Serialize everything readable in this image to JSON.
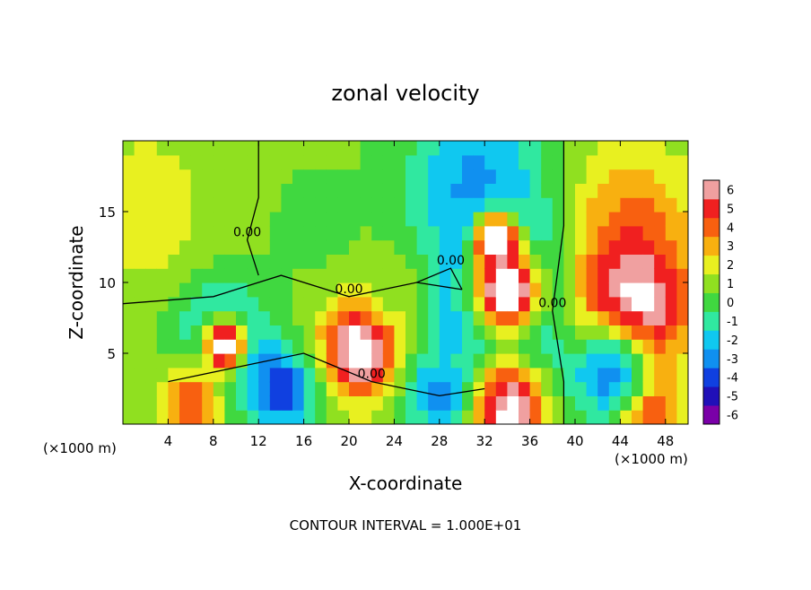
{
  "chart_data": {
    "type": "heatmap",
    "title": "zonal velocity",
    "xlabel": "X-coordinate",
    "ylabel": "Z-coordinate",
    "x_unit_left": "(×1000 m)",
    "x_unit_right": "(×1000 m)",
    "footer": "CONTOUR INTERVAL = 1.000E+01",
    "xlim": [
      0,
      50
    ],
    "ylim": [
      0,
      20
    ],
    "x_ticks": [
      4,
      8,
      12,
      16,
      20,
      24,
      28,
      32,
      36,
      40,
      44,
      48
    ],
    "x_tick_labels": [
      "4",
      "8",
      "12",
      "16",
      "20",
      "24",
      "28",
      "32",
      "36",
      "40",
      "44",
      "48"
    ],
    "y_ticks": [
      5,
      10,
      15
    ],
    "y_tick_labels": [
      "5",
      "10",
      "15"
    ],
    "colorbar": {
      "levels": [
        -6,
        -5,
        -4,
        -3,
        -2,
        -1,
        0,
        1,
        2,
        3,
        4,
        5,
        6
      ],
      "labels": [
        "-6",
        "-5",
        "-4",
        "-3",
        "-2",
        "-1",
        "0",
        "1",
        "2",
        "3",
        "4",
        "5",
        "6"
      ],
      "colors": [
        "#7a00a8",
        "#2010b8",
        "#1040e0",
        "#1090f0",
        "#10c8f0",
        "#30e8a0",
        "#40d840",
        "#90e020",
        "#e8f020",
        "#f8b010",
        "#f86010",
        "#f02020",
        "#f0a0a0"
      ]
    },
    "background_value": 0.7,
    "features": [
      {
        "x": 2,
        "y": 15,
        "r": 6,
        "value": 2.2
      },
      {
        "x": 31,
        "y": 18,
        "r": 6,
        "value": -2.3
      },
      {
        "x": 34,
        "y": 9,
        "r": 7,
        "value": -5.5
      },
      {
        "x": 34,
        "y": 9.5,
        "r": 3.5,
        "value": 8
      },
      {
        "x": 33,
        "y": 13,
        "r": 2,
        "value": 8
      },
      {
        "x": 45,
        "y": 14,
        "r": 6,
        "value": 3.5
      },
      {
        "x": 45,
        "y": 8,
        "r": 5,
        "value": 8
      },
      {
        "x": 9,
        "y": 5.5,
        "r": 4,
        "value": -5
      },
      {
        "x": 9,
        "y": 5.5,
        "r": 2.2,
        "value": 8
      },
      {
        "x": 21,
        "y": 5.5,
        "r": 4,
        "value": 6
      },
      {
        "x": 21,
        "y": 5.5,
        "r": 2,
        "value": 8
      },
      {
        "x": 14,
        "y": 2.5,
        "r": 3,
        "value": -4.5
      },
      {
        "x": 6,
        "y": 1.5,
        "r": 3,
        "value": 4.5
      },
      {
        "x": 34,
        "y": 1,
        "r": 4,
        "value": 7
      },
      {
        "x": 46,
        "y": 1,
        "r": 3,
        "value": 7
      },
      {
        "x": 28,
        "y": 2,
        "r": 3,
        "value": -3
      },
      {
        "x": 43,
        "y": 3.5,
        "r": 4,
        "value": -3
      },
      {
        "x": 17,
        "y": 14,
        "r": 5,
        "value": 0.3
      },
      {
        "x": 24,
        "y": 10,
        "r": 3,
        "value": 1.0
      }
    ],
    "contours": [
      {
        "label": "0.00",
        "points": [
          [
            0,
            8.5
          ],
          [
            8,
            9
          ],
          [
            14,
            10.5
          ],
          [
            20,
            9
          ],
          [
            26,
            10
          ],
          [
            30,
            9.5
          ]
        ]
      },
      {
        "label": "0.00",
        "points": [
          [
            4,
            3
          ],
          [
            10,
            4
          ],
          [
            16,
            5
          ],
          [
            22,
            3
          ],
          [
            28,
            2
          ],
          [
            32,
            2.5
          ]
        ]
      },
      {
        "label": "0.00",
        "points": [
          [
            12,
            20
          ],
          [
            12,
            16
          ],
          [
            11,
            13
          ],
          [
            12,
            10.5
          ]
        ]
      },
      {
        "label": "0.00",
        "points": [
          [
            39,
            20
          ],
          [
            39,
            14
          ],
          [
            38,
            8
          ],
          [
            39,
            3
          ],
          [
            39,
            0
          ]
        ]
      },
      {
        "label": "0.00",
        "points": [
          [
            26,
            10
          ],
          [
            29,
            11
          ],
          [
            30,
            9.5
          ]
        ]
      }
    ]
  }
}
